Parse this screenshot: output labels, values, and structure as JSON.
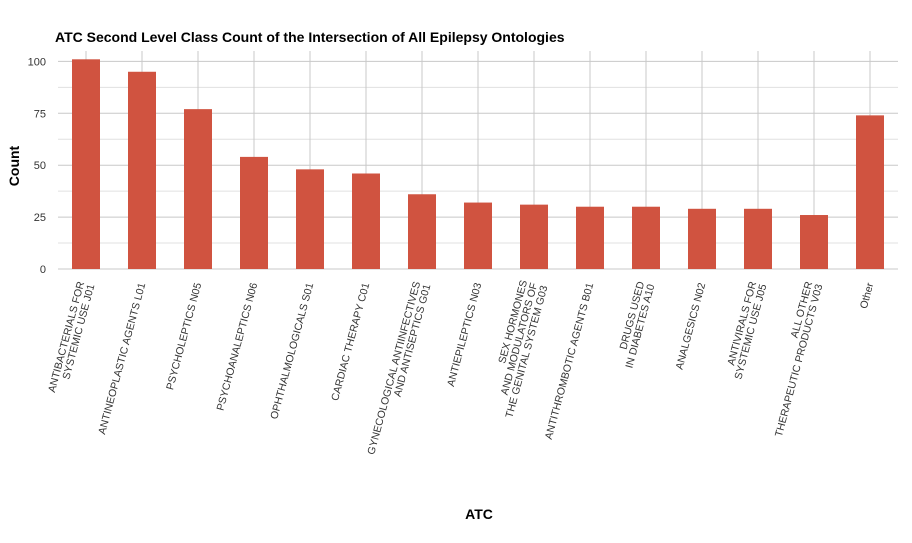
{
  "chart_data": {
    "type": "bar",
    "title": "ATC Second Level Class Count of the Intersection of All Epilepsy Ontologies",
    "xlabel": "ATC",
    "ylabel": "Count",
    "ylim": [
      0,
      105
    ],
    "yticks": [
      0,
      25,
      50,
      75,
      100
    ],
    "grid": true,
    "bar_color": "#d05340",
    "categories": [
      {
        "lines": [
          "ANTIBACTERIALS FOR",
          "SYSTEMIC USE J01"
        ]
      },
      {
        "lines": [
          "ANTINEOPLASTIC AGENTS L01"
        ]
      },
      {
        "lines": [
          "PSYCHOLEPTICS N05"
        ]
      },
      {
        "lines": [
          "PSYCHOANALEPTICS N06"
        ]
      },
      {
        "lines": [
          "OPHTHALMOLOGICALS S01"
        ]
      },
      {
        "lines": [
          "CARDIAC THERAPY C01"
        ]
      },
      {
        "lines": [
          "GYNECOLOGICAL ANTIINFECTIVES",
          "AND ANTISEPTICS G01"
        ]
      },
      {
        "lines": [
          "ANTIEPILEPTICS N03"
        ]
      },
      {
        "lines": [
          "SEX HORMONES",
          "AND MODULATORS OF",
          "THE GENITAL SYSTEM G03"
        ]
      },
      {
        "lines": [
          "ANTITHROMBOTIC AGENTS B01"
        ]
      },
      {
        "lines": [
          "DRUGS USED",
          "IN DIABETES A10"
        ]
      },
      {
        "lines": [
          "ANALGESICS N02"
        ]
      },
      {
        "lines": [
          "ANTIVIRALS FOR",
          "SYSTEMIC USE J05"
        ]
      },
      {
        "lines": [
          "ALL OTHER",
          "THERAPEUTIC PRODUCTS V03"
        ]
      },
      {
        "lines": [
          "Other"
        ]
      }
    ],
    "values": [
      101,
      95,
      77,
      54,
      48,
      46,
      36,
      32,
      31,
      30,
      30,
      29,
      29,
      26,
      74
    ]
  }
}
